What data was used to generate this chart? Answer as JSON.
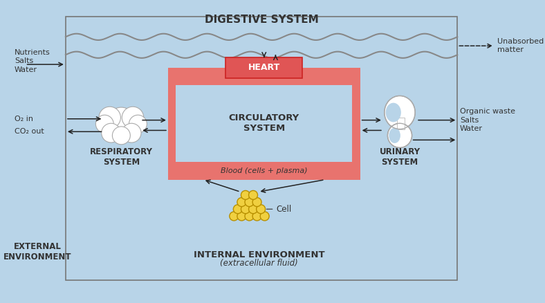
{
  "bg_color": "#b8d4e8",
  "bg_color_white": "#dce8f0",
  "outer_border_color": "#888888",
  "circ_red": "#e8736e",
  "heart_red": "#e05555",
  "cell_yellow": "#f0d040",
  "cell_edge": "#b89000",
  "title_digestive": "DIGESTIVE SYSTEM",
  "label_respiratory": "RESPIRATORY\nSYSTEM",
  "label_urinary": "URINARY\nSYSTEM",
  "label_heart": "HEART",
  "label_circulatory": "CIRCULATORY\nSYSTEM",
  "label_blood": "Blood (cells + plasma)",
  "label_internal": "INTERNAL ENVIRONMENT",
  "label_internal_sub": "(extracellular fluid)",
  "label_external": "EXTERNAL\nENVIRONMENT",
  "label_nutrients": "Nutrients\nSalts\nWater",
  "label_unabsorbed": "Unabsorbed\nmatter",
  "label_o2": "O₂ in",
  "label_co2": "CO₂ out",
  "label_organic": "Organic waste\nSalts\nWater",
  "label_cell": "Cell"
}
